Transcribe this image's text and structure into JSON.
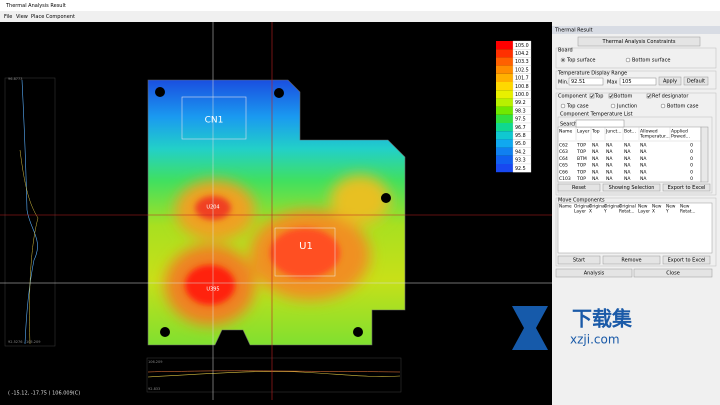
{
  "window": {
    "title": "Thermal Analysis Result"
  },
  "menu": [
    "File",
    "View",
    "Place Component"
  ],
  "viewer": {
    "legend": [
      "105.0",
      "104.2",
      "103.3",
      "102.5",
      "101.7",
      "100.8",
      "100.0",
      "99.2",
      "98.3",
      "97.5",
      "96.7",
      "95.8",
      "95.0",
      "94.2",
      "93.3",
      "92.5"
    ],
    "components": [
      "CN1",
      "U204",
      "U1",
      "U395"
    ],
    "left_profile": {
      "top": "96.8773",
      "bottom": "92.5276 - 105.209"
    },
    "bottom_profile": {
      "top": "106.209",
      "bottom": "92.833"
    },
    "status": "( -15.12, -17.75 )  106.009(C)"
  },
  "panel": {
    "title": "Thermal Result",
    "constraints_button": "Thermal Analysis Constraints",
    "board": {
      "label": "Board",
      "options": [
        "Top surface",
        "Bottom surface"
      ]
    },
    "range": {
      "label": "Temperature Display Range",
      "min_label": "Min.",
      "min": "92.51",
      "max_label": "Max",
      "max": "105",
      "buttons": [
        "Apply",
        "Default"
      ]
    },
    "component": {
      "label": "Component",
      "checks": [
        "Top",
        "Bottom",
        "Ref designator"
      ],
      "modes": [
        "Top case",
        "Junction",
        "Bottom case"
      ],
      "list_label": "Component Temperature List",
      "search_label": "Search",
      "columns": [
        [
          "Name"
        ],
        [
          "Layer"
        ],
        [
          "Top"
        ],
        [
          "Junct..."
        ],
        [
          "Bot..."
        ],
        [
          "Allowed",
          "Temperatur..."
        ],
        [
          "Applied",
          "Powed..."
        ]
      ],
      "rows": [
        [
          "C62",
          "TOP",
          "NA",
          "NA",
          "NA",
          "NA",
          0
        ],
        [
          "C63",
          "TOP",
          "NA",
          "NA",
          "NA",
          "NA",
          0
        ],
        [
          "C64",
          "BTM",
          "NA",
          "NA",
          "NA",
          "NA",
          0
        ],
        [
          "C65",
          "TOP",
          "NA",
          "NA",
          "NA",
          "NA",
          0
        ],
        [
          "C66",
          "TOP",
          "NA",
          "NA",
          "NA",
          "NA",
          0
        ],
        [
          "C103",
          "TOP",
          "NA",
          "NA",
          "NA",
          "NA",
          0
        ]
      ],
      "buttons": [
        "Reset",
        "Showing Selection",
        "Export to Excel"
      ]
    },
    "move": {
      "label": "Move Components",
      "columns": [
        [
          "Name"
        ],
        [
          "Original",
          "Layer"
        ],
        [
          "Original",
          "X"
        ],
        [
          "Original",
          "Y"
        ],
        [
          "Original",
          "Rotat..."
        ],
        [
          "New",
          "Layer"
        ],
        [
          "New",
          "X"
        ],
        [
          "New",
          "Y"
        ],
        [
          "New",
          "Rotat..."
        ]
      ],
      "buttons": [
        "Start",
        "Remove",
        "Export to Excel"
      ]
    },
    "buttons": [
      "Analysis",
      "Close"
    ]
  },
  "watermark": {
    "brand": "下载集",
    "site": "xzji.com"
  }
}
